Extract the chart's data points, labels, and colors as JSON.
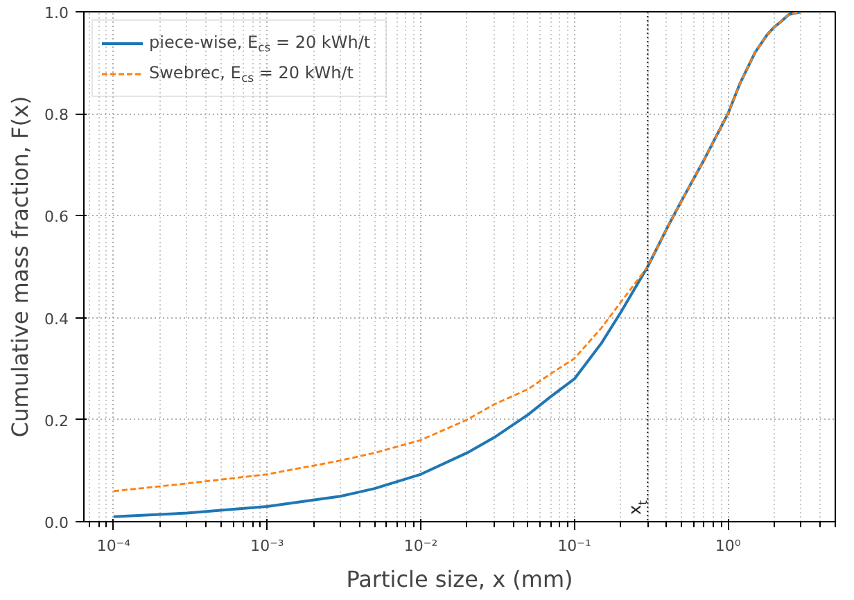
{
  "chart_data": {
    "type": "line",
    "xlabel": "Particle size, x (mm)",
    "ylabel": "Cumulative mass fraction, F(x)",
    "log": "x",
    "xlim": [
      6.4e-05,
      5
    ],
    "ylim": [
      0,
      1
    ],
    "xticks": [
      {
        "value": 0.0001,
        "label": "10⁻⁴"
      },
      {
        "value": 0.001,
        "label": "10⁻³"
      },
      {
        "value": 0.01,
        "label": "10⁻²"
      },
      {
        "value": 0.1,
        "label": "10⁻¹"
      },
      {
        "value": 1,
        "label": "10⁰"
      }
    ],
    "yticks": [
      {
        "value": 0,
        "label": "0.0"
      },
      {
        "value": 0.2,
        "label": "0.2"
      },
      {
        "value": 0.4,
        "label": "0.4"
      },
      {
        "value": 0.6,
        "label": "0.6"
      },
      {
        "value": 0.8,
        "label": "0.8"
      },
      {
        "value": 1,
        "label": "1.0"
      }
    ],
    "grid": true,
    "legend": "top left",
    "marker": "none",
    "x": [
      0.0001,
      0.0003,
      0.001,
      0.003,
      0.005,
      0.01,
      0.02,
      0.03,
      0.05,
      0.07,
      0.1,
      0.15,
      0.2,
      0.3,
      0.4,
      0.5,
      0.7,
      1,
      1.2,
      1.5,
      1.8,
      2,
      2.2,
      2.5,
      3
    ],
    "series": [
      {
        "name": "piece-wise, E$_{cs}$ = 20 kWh/t",
        "color": "#1f77b4",
        "line_style": "solid",
        "values": [
          0.01,
          0.017,
          0.03,
          0.05,
          0.065,
          0.093,
          0.135,
          0.165,
          0.21,
          0.245,
          0.28,
          0.35,
          0.41,
          0.5,
          0.575,
          0.63,
          0.71,
          0.8,
          0.86,
          0.92,
          0.955,
          0.97,
          0.98,
          0.995,
          1.0
        ]
      },
      {
        "name": "Swebrec, E$_{cs}$ = 20 kWh/t",
        "color": "#ff7f0e",
        "line_style": "dashed",
        "values": [
          0.06,
          0.075,
          0.093,
          0.12,
          0.135,
          0.16,
          0.2,
          0.23,
          0.26,
          0.29,
          0.32,
          0.38,
          0.43,
          0.5,
          0.575,
          0.63,
          0.71,
          0.8,
          0.86,
          0.92,
          0.955,
          0.97,
          0.98,
          0.995,
          1.0
        ]
      }
    ],
    "ref_lines": [
      {
        "axis": "x",
        "value": 0.3,
        "label": "x$_{t}$",
        "color": "#333333",
        "line_style": "dotted"
      }
    ]
  }
}
